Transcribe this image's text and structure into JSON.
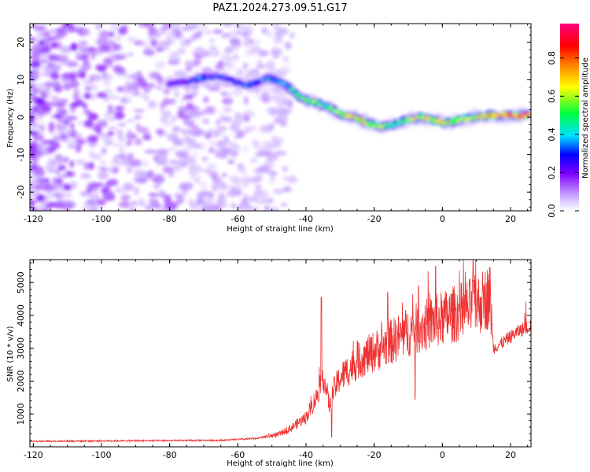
{
  "figure_title": "PAZ1.2024.273.09.51.G17",
  "chart_data": [
    {
      "type": "heatmap",
      "title": "PAZ1.2024.273.09.51.G17",
      "xlabel": "Height of straight line (km)",
      "ylabel": "Frequency (Hz)",
      "xlim": [
        -121,
        26
      ],
      "ylim": [
        -25,
        25
      ],
      "xticks": [
        "-120",
        "-100",
        "-80",
        "-60",
        "-40",
        "-20",
        "0",
        "20"
      ],
      "yticks": [
        "-20",
        "-10",
        "0",
        "10",
        "20"
      ],
      "colorbar": {
        "label": "Normalized spectral amplitude",
        "range": [
          0,
          0.98
        ],
        "ticks": [
          "0.0",
          "0.2",
          "0.4",
          "0.6",
          "0.8"
        ],
        "colormap": [
          "#ffffff",
          "#c8a8ff",
          "#8000ff",
          "#0000ff",
          "#00e0ff",
          "#00ff40",
          "#ffff00",
          "#ff8000",
          "#ff0000",
          "#ff0080"
        ]
      },
      "ridge": {
        "x": [
          -80,
          -75,
          -70,
          -66,
          -62,
          -58,
          -55,
          -51,
          -48,
          -45,
          -42,
          -38,
          -34,
          -30,
          -26,
          -22,
          -18,
          -14,
          -10,
          -6,
          -2,
          2,
          6,
          10,
          14,
          18,
          22,
          26
        ],
        "freq": [
          9,
          9.5,
          10.5,
          11,
          10,
          8.5,
          9,
          10.5,
          9.5,
          8,
          5.5,
          4,
          3,
          1,
          0,
          -1.5,
          -2.5,
          -2,
          -0.5,
          0,
          -1,
          -1.5,
          -0.5,
          0,
          0.5,
          0.5,
          0.5,
          0.5
        ],
        "amplitude": [
          0.25,
          0.3,
          0.35,
          0.3,
          0.3,
          0.35,
          0.3,
          0.4,
          0.35,
          0.45,
          0.55,
          0.6,
          0.55,
          0.65,
          0.7,
          0.7,
          0.6,
          0.55,
          0.6,
          0.7,
          0.75,
          0.7,
          0.75,
          0.8,
          0.85,
          0.9,
          0.95,
          0.9
        ]
      },
      "noise_region_x": [
        -121,
        -52
      ]
    },
    {
      "type": "line",
      "xlabel": "Height of straight line (km)",
      "ylabel": "SNR (10 * v/v)",
      "xlim": [
        -121,
        26
      ],
      "ylim": [
        0,
        5700
      ],
      "xticks": [
        "-120",
        "-100",
        "-80",
        "-60",
        "-40",
        "-20",
        "0",
        "20"
      ],
      "yticks": [
        "1000",
        "2000",
        "3000",
        "4000",
        "5000"
      ],
      "color": "#ee3333",
      "trend": {
        "x": [
          -121,
          -100,
          -80,
          -65,
          -55,
          -48,
          -44,
          -40,
          -37,
          -35,
          -33,
          -32,
          -30,
          -25,
          -20,
          -15,
          -10,
          -5,
          0,
          5,
          10,
          14,
          15,
          18,
          22,
          26
        ],
        "y": [
          170,
          180,
          190,
          200,
          250,
          380,
          600,
          900,
          1500,
          2200,
          1200,
          1700,
          2100,
          2600,
          2900,
          3200,
          3500,
          3700,
          3900,
          4100,
          4300,
          4600,
          3000,
          3200,
          3500,
          3700
        ]
      },
      "spikes": [
        {
          "x": -35.5,
          "y": 4550
        },
        {
          "x": -32.5,
          "y": 300
        },
        {
          "x": -8,
          "y": 1450
        },
        {
          "x": 9,
          "y": 5700
        },
        {
          "x": -2,
          "y": 5500
        },
        {
          "x": -16,
          "y": 4700
        },
        {
          "x": -7,
          "y": 4900
        }
      ]
    }
  ]
}
